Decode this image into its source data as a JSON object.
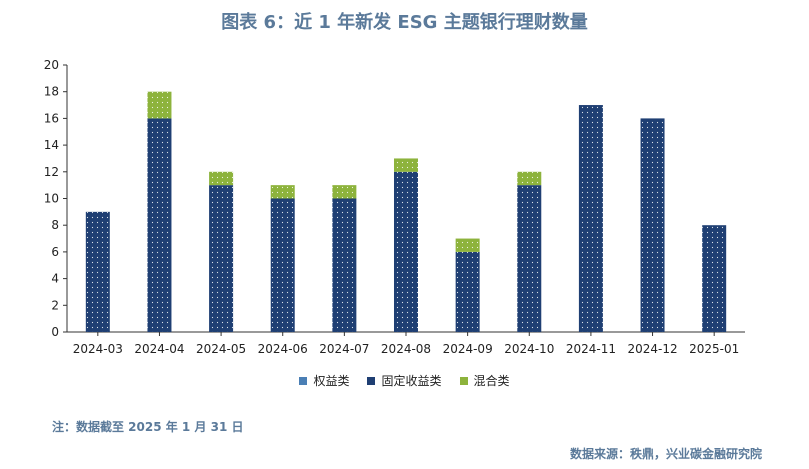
{
  "figure_title": "图表 6：近 1 年新发 ESG 主题银行理财数量",
  "note": "注：数据截至 2025 年 1 月 31 日",
  "source": "数据来源：秩鼎，兴业碳金融研究院",
  "colors": {
    "equity": "#4a7fb5",
    "fixed_income": "#1f3f73",
    "mixed": "#8db33c",
    "title": "#5b7a9a"
  },
  "chart_data": {
    "type": "bar",
    "stacked": true,
    "title": "",
    "xlabel": "",
    "ylabel": "",
    "ylim": [
      0,
      20
    ],
    "yticks": [
      0,
      2,
      4,
      6,
      8,
      10,
      12,
      14,
      16,
      18,
      20
    ],
    "grid": false,
    "legend_position": "bottom",
    "categories": [
      "2024-03",
      "2024-04",
      "2024-05",
      "2024-06",
      "2024-07",
      "2024-08",
      "2024-09",
      "2024-10",
      "2024-11",
      "2024-12",
      "2025-01"
    ],
    "series": [
      {
        "name": "权益类",
        "color": "#4a7fb5",
        "values": [
          0,
          0,
          0,
          0,
          0,
          0,
          0,
          0,
          0,
          0,
          0
        ]
      },
      {
        "name": "固定收益类",
        "color": "#1f3f73",
        "values": [
          9,
          16,
          11,
          10,
          10,
          12,
          6,
          11,
          17,
          16,
          8
        ]
      },
      {
        "name": "混合类",
        "color": "#8db33c",
        "values": [
          0,
          2,
          1,
          1,
          1,
          1,
          1,
          1,
          0,
          0,
          0
        ]
      }
    ]
  }
}
